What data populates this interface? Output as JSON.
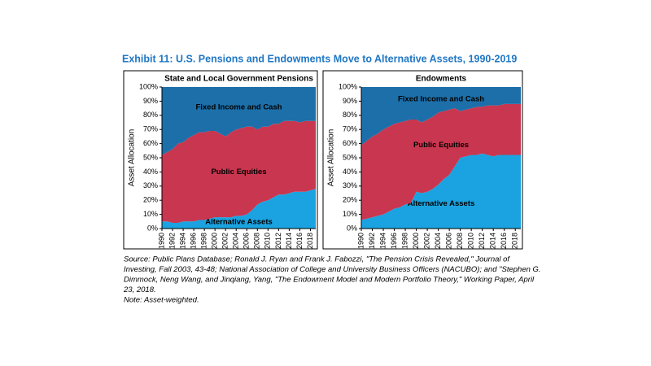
{
  "title": "Exhibit 11: U.S. Pensions and Endowments Move to Alternative Assets, 1990-2019",
  "source": [
    "Source: Public Plans Database; Ronald J. Ryan and Frank J. Fabozzi, \"The Pension Crisis Revealed,\" Journal of",
    "Investing, Fall 2003, 43-48; National Association of College and University Business Officers (NACUBO); and \"Stephen G.",
    "Dimmock, Neng Wang, and Jinqiang, Yang, \"The Endowment Model and Modern Portfolio Theory,\" Working Paper, April",
    "23, 2018.",
    "Note: Asset-weighted."
  ],
  "chart_data": [
    {
      "type": "area",
      "stacked": true,
      "title": "State and Local Government Pensions",
      "ylabel": "Asset Allocation",
      "x": [
        1990,
        1991,
        1992,
        1993,
        1994,
        1995,
        1996,
        1997,
        1998,
        1999,
        2000,
        2001,
        2002,
        2003,
        2004,
        2005,
        2006,
        2007,
        2008,
        2009,
        2010,
        2011,
        2012,
        2013,
        2014,
        2015,
        2016,
        2017,
        2018,
        2019
      ],
      "xlim": [
        1990,
        2019
      ],
      "xticks": [
        1990,
        1992,
        1994,
        1996,
        1998,
        2000,
        2002,
        2004,
        2006,
        2008,
        2010,
        2012,
        2014,
        2016,
        2018
      ],
      "ylim": [
        0,
        100
      ],
      "yticks": [
        {
          "value": 0,
          "label": "0%"
        },
        {
          "value": 10,
          "label": "10%"
        },
        {
          "value": 20,
          "label": "20%"
        },
        {
          "value": 30,
          "label": "30%"
        },
        {
          "value": 40,
          "label": "40%"
        },
        {
          "value": 50,
          "label": "50%"
        },
        {
          "value": 60,
          "label": "60%"
        },
        {
          "value": 70,
          "label": "70%"
        },
        {
          "value": 80,
          "label": "80%"
        },
        {
          "value": 90,
          "label": "90%"
        },
        {
          "value": 100,
          "label": "100%"
        }
      ],
      "series": [
        {
          "name": "Alternative Assets",
          "color": "#1aa3e0",
          "values": [
            5,
            5,
            4,
            4,
            5,
            5,
            5,
            6,
            6,
            7,
            8,
            8,
            8,
            8,
            9,
            9,
            10,
            13,
            17,
            19,
            20,
            22,
            24,
            24,
            25,
            26,
            26,
            26,
            27,
            28
          ]
        },
        {
          "name": "Public Equities",
          "color": "#c9364f",
          "values": [
            47,
            49,
            52,
            56,
            56,
            59,
            61,
            62,
            62,
            62,
            61,
            59,
            57,
            60,
            61,
            62,
            62,
            59,
            53,
            53,
            52,
            52,
            50,
            52,
            51,
            50,
            49,
            50,
            49,
            48
          ]
        },
        {
          "name": "Fixed Income and Cash",
          "color": "#1c6fa9",
          "values": [
            48,
            46,
            44,
            40,
            39,
            36,
            34,
            32,
            32,
            31,
            31,
            33,
            35,
            32,
            30,
            29,
            28,
            28,
            30,
            28,
            28,
            26,
            26,
            24,
            24,
            24,
            25,
            24,
            24,
            24
          ]
        }
      ]
    },
    {
      "type": "area",
      "stacked": true,
      "title": "Endowments",
      "ylabel": "Asset Allocation",
      "x": [
        1990,
        1991,
        1992,
        1993,
        1994,
        1995,
        1996,
        1997,
        1998,
        1999,
        2000,
        2001,
        2002,
        2003,
        2004,
        2005,
        2006,
        2007,
        2008,
        2009,
        2010,
        2011,
        2012,
        2013,
        2014,
        2015,
        2016,
        2017,
        2018,
        2019
      ],
      "xlim": [
        1990,
        2019
      ],
      "xticks": [
        1990,
        1992,
        1994,
        1996,
        1998,
        2000,
        2002,
        2004,
        2006,
        2008,
        2010,
        2012,
        2014,
        2016,
        2018
      ],
      "ylim": [
        0,
        100
      ],
      "yticks": [
        {
          "value": 0,
          "label": "0%"
        },
        {
          "value": 10,
          "label": "10%"
        },
        {
          "value": 20,
          "label": "20%"
        },
        {
          "value": 30,
          "label": "30%"
        },
        {
          "value": 40,
          "label": "40%"
        },
        {
          "value": 50,
          "label": "50%"
        },
        {
          "value": 60,
          "label": "60%"
        },
        {
          "value": 70,
          "label": "70%"
        },
        {
          "value": 80,
          "label": "80%"
        },
        {
          "value": 90,
          "label": "90%"
        },
        {
          "value": 100,
          "label": "100%"
        }
      ],
      "series": [
        {
          "name": "Alternative Assets",
          "color": "#1aa3e0",
          "values": [
            6,
            7,
            8,
            9,
            10,
            12,
            14,
            15,
            17,
            18,
            26,
            25,
            26,
            28,
            31,
            35,
            38,
            44,
            50,
            51,
            52,
            52,
            53,
            52,
            51,
            52,
            52,
            52,
            52,
            52
          ]
        },
        {
          "name": "Public Equities",
          "color": "#c9364f",
          "values": [
            53,
            55,
            57,
            58,
            60,
            60,
            60,
            60,
            59,
            59,
            51,
            50,
            51,
            51,
            51,
            48,
            46,
            41,
            33,
            33,
            33,
            34,
            33,
            35,
            36,
            35,
            36,
            36,
            36,
            36
          ]
        },
        {
          "name": "Fixed Income and Cash",
          "color": "#1c6fa9",
          "values": [
            41,
            38,
            35,
            33,
            30,
            28,
            26,
            25,
            24,
            23,
            23,
            25,
            23,
            21,
            18,
            17,
            16,
            15,
            17,
            16,
            15,
            14,
            14,
            13,
            13,
            13,
            12,
            12,
            12,
            12
          ]
        }
      ]
    }
  ]
}
